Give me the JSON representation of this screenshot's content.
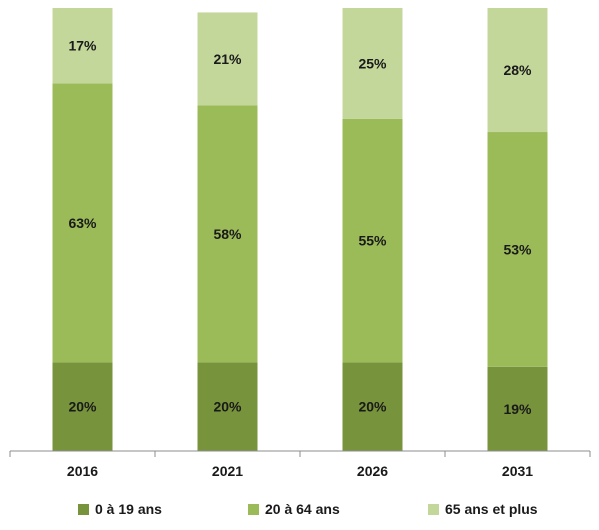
{
  "chart_data": {
    "type": "bar",
    "stacked": true,
    "normalized": true,
    "categories": [
      "2016",
      "2021",
      "2026",
      "2031"
    ],
    "series": [
      {
        "name": "0 à 19 ans",
        "values": [
          20,
          20,
          20,
          19
        ],
        "labels": [
          "20%",
          "20%",
          "20%",
          "19%"
        ],
        "color": "#77933c"
      },
      {
        "name": "20 à 64 ans",
        "values": [
          63,
          58,
          55,
          53
        ],
        "labels": [
          "63%",
          "58%",
          "55%",
          "53%"
        ],
        "color": "#9bbb59"
      },
      {
        "name": "65 ans et plus",
        "values": [
          17,
          21,
          25,
          28
        ],
        "labels": [
          "17%",
          "21%",
          "25%",
          "28%"
        ],
        "color": "#c4d79b"
      }
    ],
    "ylim": [
      0,
      100
    ],
    "grid": false,
    "legend": "bottom"
  }
}
